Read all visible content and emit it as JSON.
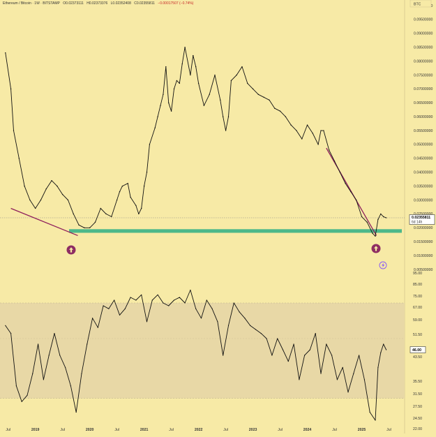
{
  "header": {
    "symbol": "Ethereum / Bitcoin · 1W · BITSTAMP",
    "open": "O0.02373111",
    "high": "H0.02373376",
    "low": "L0.02352408",
    "close": "C0.02355811",
    "change": "−0.00017507 (−0.74%)"
  },
  "currency_badge": "BTC",
  "price_tag": {
    "price": "0.02355811",
    "countdown": "6d 14h"
  },
  "colors": {
    "background": "#f7eaa6",
    "support_zone": "#4cb88a",
    "trendline": "#8e1f5c",
    "arrow_marker": "#8e2d63",
    "rsi_band": "#e8d8a6",
    "line": "#111111",
    "grid_text": "#333333"
  },
  "icons": [
    "arrow-up-circle-icon",
    "arrow-up-circle-icon",
    "lightning-icon"
  ],
  "chart_data": [
    {
      "type": "line",
      "title": "Ethereum / Bitcoin · 1W · BITSTAMP",
      "y_unit": "BTC",
      "ylim": [
        0.005,
        0.1
      ],
      "y_ticks": [
        "0.10000000",
        "0.09500000",
        "0.09000000",
        "0.08500000",
        "0.08000000",
        "0.07500000",
        "0.07000000",
        "0.06500000",
        "0.06000000",
        "0.05500000",
        "0.05000000",
        "0.04500000",
        "0.04000000",
        "0.03500000",
        "0.03000000",
        "0.02500000",
        "0.02000000",
        "0.01500000",
        "0.01000000",
        "0.00500000"
      ],
      "x_ticks": [
        "Jul",
        "2019",
        "Jul",
        "2020",
        "Jul",
        "2021",
        "Jul",
        "2022",
        "Jul",
        "2023",
        "Jul",
        "2024",
        "Jul",
        "2025",
        "Jul"
      ],
      "x": [
        2018.45,
        2018.55,
        2018.6,
        2018.7,
        2018.8,
        2018.9,
        2019.0,
        2019.1,
        2019.2,
        2019.3,
        2019.4,
        2019.5,
        2019.6,
        2019.7,
        2019.8,
        2019.9,
        2020.0,
        2020.1,
        2020.2,
        2020.3,
        2020.4,
        2020.5,
        2020.55,
        2020.6,
        2020.7,
        2020.75,
        2020.85,
        2020.9,
        2020.95,
        2021.0,
        2021.05,
        2021.1,
        2021.2,
        2021.25,
        2021.3,
        2021.35,
        2021.4,
        2021.45,
        2021.5,
        2021.55,
        2021.6,
        2021.65,
        2021.7,
        2021.75,
        2021.85,
        2021.9,
        2021.95,
        2022.0,
        2022.1,
        2022.2,
        2022.3,
        2022.4,
        2022.45,
        2022.5,
        2022.55,
        2022.6,
        2022.7,
        2022.8,
        2022.9,
        2023.0,
        2023.1,
        2023.2,
        2023.3,
        2023.4,
        2023.5,
        2023.6,
        2023.7,
        2023.8,
        2023.9,
        2024.0,
        2024.1,
        2024.2,
        2024.25,
        2024.3,
        2024.4,
        2024.5,
        2024.6,
        2024.7,
        2024.8,
        2024.9,
        2025.0,
        2025.1,
        2025.2,
        2025.25,
        2025.3,
        2025.35,
        2025.4,
        2025.45
      ],
      "series": [
        {
          "type": "line",
          "values": [
            0.083,
            0.07,
            0.055,
            0.045,
            0.035,
            0.03,
            0.027,
            0.03,
            0.034,
            0.037,
            0.035,
            0.032,
            0.03,
            0.025,
            0.021,
            0.02,
            0.02,
            0.022,
            0.027,
            0.025,
            0.024,
            0.03,
            0.033,
            0.035,
            0.036,
            0.031,
            0.028,
            0.025,
            0.027,
            0.035,
            0.04,
            0.05,
            0.056,
            0.06,
            0.064,
            0.068,
            0.078,
            0.065,
            0.062,
            0.07,
            0.073,
            0.072,
            0.079,
            0.085,
            0.075,
            0.082,
            0.078,
            0.072,
            0.064,
            0.068,
            0.075,
            0.066,
            0.06,
            0.055,
            0.06,
            0.073,
            0.075,
            0.078,
            0.072,
            0.07,
            0.068,
            0.067,
            0.066,
            0.063,
            0.062,
            0.06,
            0.057,
            0.055,
            0.052,
            0.057,
            0.054,
            0.05,
            0.055,
            0.055,
            0.048,
            0.044,
            0.04,
            0.036,
            0.033,
            0.03,
            0.024,
            0.022,
            0.018,
            0.017,
            0.023,
            0.025,
            0.024,
            0.0236
          ]
        }
      ],
      "annotations": {
        "support_zone": [
          0.0182,
          0.0195
        ],
        "trendline_1": [
          [
            2018.55,
            0.027
          ],
          [
            2019.78,
            0.0172
          ]
        ],
        "trendline_2": [
          [
            2024.35,
            0.0487
          ],
          [
            2025.27,
            0.0172
          ]
        ]
      },
      "grid": false
    },
    {
      "type": "line",
      "title": "",
      "ylim": [
        20,
        95
      ],
      "y_ticks": [
        "95.00",
        "85.00",
        "75.00",
        "67.00",
        "59.00",
        "51.50",
        "43.50",
        "35.50",
        "31.50",
        "27.50",
        "24.50",
        "22.00"
      ],
      "bands": {
        "overbought": 70,
        "oversold": 30,
        "middle": 50
      },
      "x": [
        2018.45,
        2018.55,
        2018.65,
        2018.75,
        2018.85,
        2018.95,
        2019.05,
        2019.15,
        2019.25,
        2019.35,
        2019.45,
        2019.55,
        2019.65,
        2019.75,
        2019.85,
        2019.95,
        2020.05,
        2020.15,
        2020.25,
        2020.35,
        2020.45,
        2020.55,
        2020.65,
        2020.75,
        2020.85,
        2020.95,
        2021.05,
        2021.15,
        2021.25,
        2021.35,
        2021.45,
        2021.55,
        2021.65,
        2021.75,
        2021.85,
        2021.95,
        2022.05,
        2022.15,
        2022.25,
        2022.35,
        2022.45,
        2022.55,
        2022.65,
        2022.75,
        2022.85,
        2022.95,
        2023.05,
        2023.15,
        2023.25,
        2023.35,
        2023.45,
        2023.55,
        2023.65,
        2023.75,
        2023.85,
        2023.95,
        2024.05,
        2024.15,
        2024.25,
        2024.35,
        2024.45,
        2024.55,
        2024.65,
        2024.75,
        2024.85,
        2024.95,
        2025.05,
        2025.15,
        2025.25,
        2025.3,
        2025.35,
        2025.4,
        2025.45
      ],
      "series": [
        {
          "type": "line",
          "values": [
            56,
            52,
            34,
            29,
            31,
            38,
            48,
            36,
            44,
            52,
            44,
            40,
            34,
            26,
            38,
            48,
            60,
            55,
            68,
            66,
            72,
            62,
            66,
            74,
            72,
            76,
            58,
            72,
            76,
            70,
            68,
            72,
            74,
            70,
            80,
            66,
            60,
            72,
            66,
            58,
            44,
            56,
            70,
            64,
            60,
            56,
            54,
            52,
            50,
            44,
            50,
            46,
            42,
            48,
            36,
            44,
            46,
            52,
            38,
            48,
            44,
            36,
            40,
            32,
            38,
            44,
            36,
            26,
            24,
            40,
            45,
            48,
            46
          ]
        }
      ],
      "grid": false
    }
  ]
}
